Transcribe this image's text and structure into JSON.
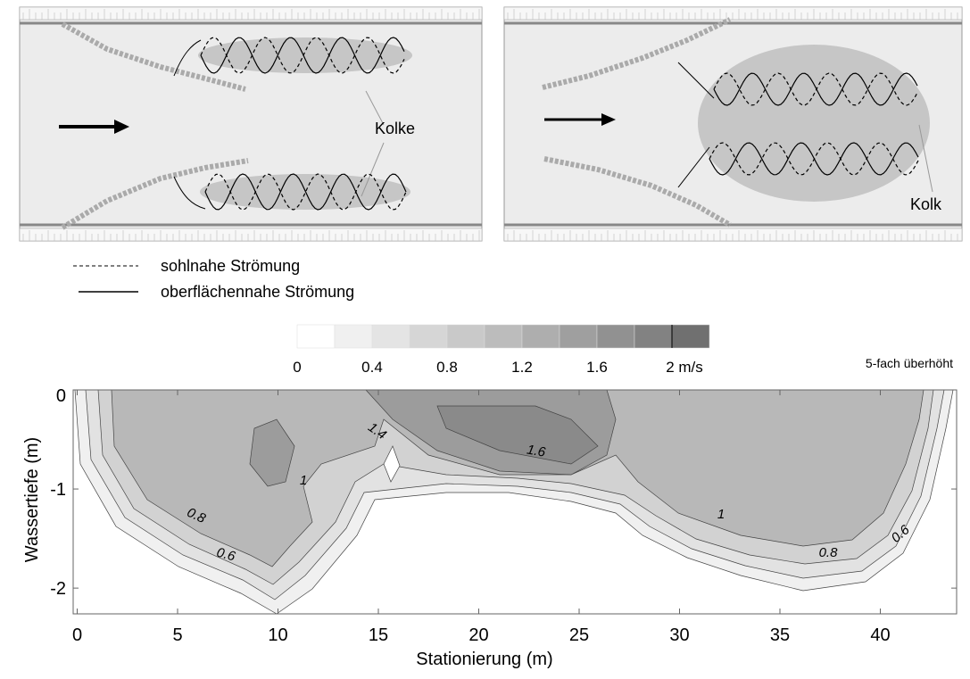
{
  "diagrams": [
    {
      "label": "Kolke"
    },
    {
      "label": "Kolk"
    }
  ],
  "legend": [
    {
      "style": "dashed",
      "label": "sohlnahe Strömung"
    },
    {
      "style": "solid",
      "label": "oberflächennahe Strömung"
    }
  ],
  "chart_data": {
    "type": "contour",
    "note": "5-fach überhöht",
    "xlabel": "Stationierung (m)",
    "ylabel": "Wassertiefe (m)",
    "xlim": [
      -0.2,
      43.8
    ],
    "ylim": [
      -2.26,
      0
    ],
    "xticks": [
      0,
      5,
      10,
      15,
      20,
      25,
      30,
      35,
      40
    ],
    "yticks": [
      0,
      -1,
      -2
    ],
    "colorbar": {
      "lim": [
        0,
        2.2
      ],
      "ticks": [
        0,
        0.4,
        0.8,
        1.2,
        1.6,
        {
          "value": 2,
          "label": "2 m/s"
        }
      ],
      "colors": [
        "#ffffff",
        "#f0f0f0",
        "#e4e4e4",
        "#d6d6d6",
        "#c9c9c9",
        "#bcbcbc",
        "#aeaeae",
        "#9f9f9f",
        "#919191",
        "#828282",
        "#707070"
      ]
    },
    "contour_labels": [
      1.4,
      1.6,
      1,
      0.8,
      0.6,
      1,
      0.8,
      0.6
    ]
  }
}
